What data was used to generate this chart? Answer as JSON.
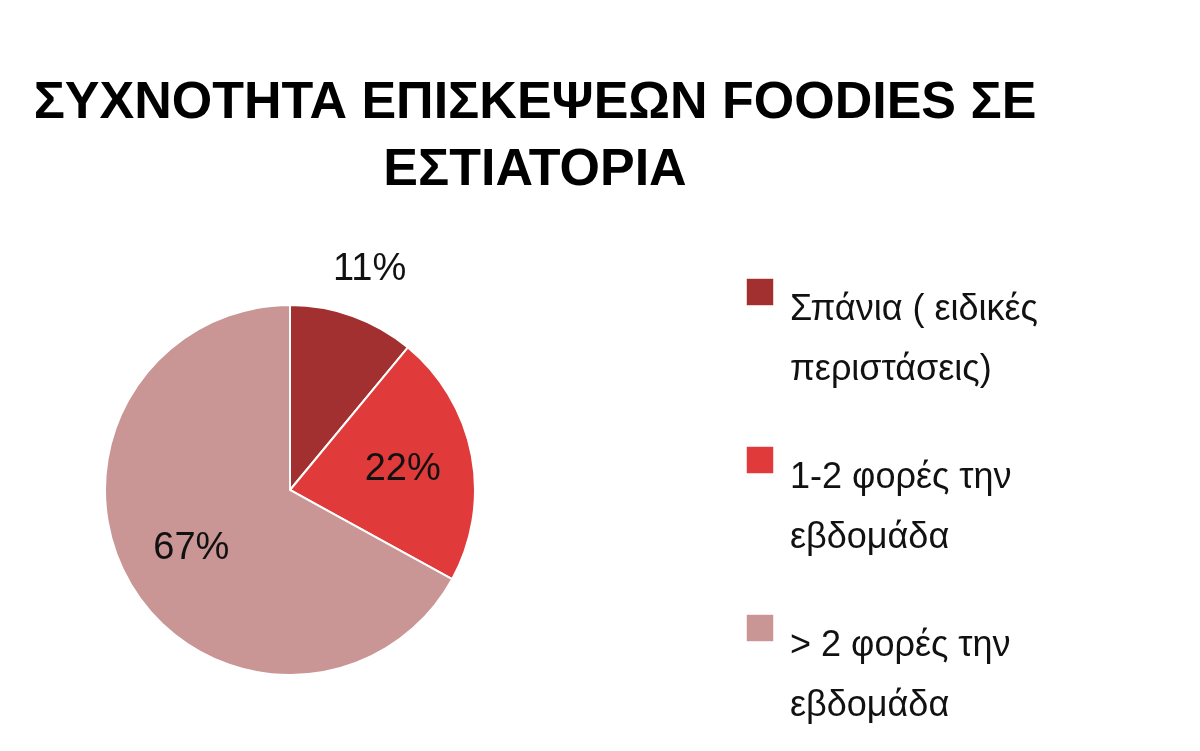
{
  "chart_data": {
    "type": "pie",
    "title": "ΣΥΧΝΟΤΗΤΑ ΕΠΙΣΚΕΨΕΩΝ FOODIES ΣΕ ΕΣΤΙΑΤΟΡΙΑ",
    "categories": [
      "Σπάνια ( ειδικές περιστάσεις)",
      "1-2 φορές την εβδομάδα",
      "> 2 φορές την εβδομάδα"
    ],
    "values": [
      11,
      22,
      67
    ],
    "value_labels": [
      "11%",
      "22%",
      "67%"
    ],
    "colors": [
      "#a33030",
      "#e03a3a",
      "#c99595"
    ],
    "legend": "right"
  }
}
